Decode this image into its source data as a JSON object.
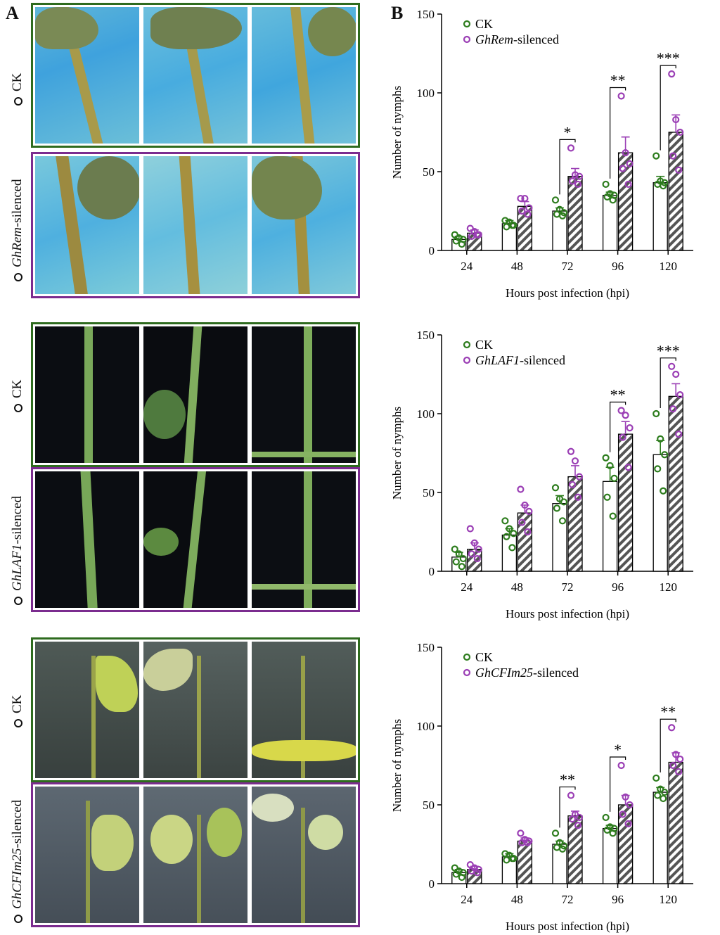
{
  "panel_a_label": "A",
  "panel_b_label": "B",
  "colors": {
    "ck": "#2e7d1e",
    "silenced": "#9b3fb5",
    "ck_border": "#2e6b1e",
    "si_border": "#7b2c8f"
  },
  "photo_groups": [
    {
      "ck_label": "CK",
      "silenced_gene": "GhRem",
      "silenced_suffix": "-silenced"
    },
    {
      "ck_label": "CK",
      "silenced_gene": "GhLAF1",
      "silenced_suffix": "-silenced"
    },
    {
      "ck_label": "CK",
      "silenced_gene": "GhCFIm25",
      "silenced_suffix": "-silenced"
    }
  ],
  "chart_data": [
    {
      "type": "bar",
      "xlabel": "Hours post infection (hpi)",
      "ylabel": "Number of nymphs",
      "ylim": [
        0,
        150
      ],
      "yticks": [
        0,
        50,
        100,
        150
      ],
      "categories": [
        "24",
        "48",
        "72",
        "96",
        "120"
      ],
      "legend": {
        "ck": "CK",
        "silenced_gene": "GhRem",
        "silenced_suffix": "-silenced"
      },
      "series": [
        {
          "name": "CK",
          "values": [
            7,
            17,
            25,
            35,
            43
          ],
          "errors": [
            2,
            2,
            2,
            2,
            4
          ],
          "points": [
            [
              10,
              8,
              7,
              6,
              4
            ],
            [
              19,
              18,
              16,
              15,
              16
            ],
            [
              32,
              26,
              24,
              23,
              22
            ],
            [
              42,
              36,
              35,
              34,
              32
            ],
            [
              60,
              44,
              43,
              42,
              41
            ]
          ]
        },
        {
          "name": "GhRem-silenced",
          "values": [
            11,
            28,
            47,
            62,
            75
          ],
          "errors": [
            2,
            3,
            5,
            10,
            11
          ],
          "points": [
            [
              14,
              12,
              10,
              9,
              10
            ],
            [
              33,
              33,
              27,
              25,
              23
            ],
            [
              65,
              48,
              47,
              44,
              42
            ],
            [
              98,
              62,
              55,
              52,
              42
            ],
            [
              112,
              83,
              75,
              60,
              51
            ]
          ]
        }
      ],
      "significance": [
        {
          "category": "72",
          "label": "*"
        },
        {
          "category": "96",
          "label": "**"
        },
        {
          "category": "120",
          "label": "***"
        }
      ]
    },
    {
      "type": "bar",
      "xlabel": "Hours post infection (hpi)",
      "ylabel": "Number of nymphs",
      "ylim": [
        0,
        150
      ],
      "yticks": [
        0,
        50,
        100,
        150
      ],
      "categories": [
        "24",
        "48",
        "72",
        "96",
        "120"
      ],
      "legend": {
        "ck": "CK",
        "silenced_gene": "GhLAF1",
        "silenced_suffix": "-silenced"
      },
      "series": [
        {
          "name": "CK",
          "values": [
            9,
            23,
            43,
            57,
            74
          ],
          "errors": [
            3,
            4,
            5,
            9,
            9
          ],
          "points": [
            [
              14,
              11,
              8,
              6,
              3
            ],
            [
              32,
              27,
              24,
              22,
              15
            ],
            [
              53,
              46,
              44,
              40,
              32
            ],
            [
              72,
              67,
              59,
              47,
              35
            ],
            [
              100,
              84,
              74,
              65,
              51
            ]
          ]
        },
        {
          "name": "GhLAF1-silenced",
          "values": [
            14,
            37,
            60,
            87,
            111
          ],
          "errors": [
            4,
            5,
            7,
            8,
            8
          ],
          "points": [
            [
              27,
              18,
              14,
              11,
              8
            ],
            [
              52,
              42,
              38,
              31,
              25
            ],
            [
              76,
              70,
              60,
              55,
              47
            ],
            [
              102,
              99,
              91,
              85,
              66
            ],
            [
              130,
              125,
              112,
              103,
              87
            ]
          ]
        }
      ],
      "significance": [
        {
          "category": "96",
          "label": "**"
        },
        {
          "category": "120",
          "label": "***"
        }
      ]
    },
    {
      "type": "bar",
      "xlabel": "Hours post infection (hpi)",
      "ylabel": "Number of nymphs",
      "ylim": [
        0,
        150
      ],
      "yticks": [
        0,
        50,
        100,
        150
      ],
      "categories": [
        "24",
        "48",
        "72",
        "96",
        "120"
      ],
      "legend": {
        "ck": "CK",
        "silenced_gene": "GhCFIm25",
        "silenced_suffix": "-silenced"
      },
      "series": [
        {
          "name": "CK",
          "values": [
            7,
            17,
            25,
            35,
            58
          ],
          "errors": [
            2,
            2,
            2,
            2,
            3
          ],
          "points": [
            [
              10,
              8,
              7,
              6,
              4
            ],
            [
              19,
              18,
              16,
              15,
              16
            ],
            [
              32,
              26,
              24,
              23,
              22
            ],
            [
              42,
              36,
              35,
              34,
              32
            ],
            [
              67,
              60,
              58,
              56,
              54
            ]
          ]
        },
        {
          "name": "GhCFIm25-silenced",
          "values": [
            9,
            27,
            43,
            50,
            77
          ],
          "errors": [
            2,
            2,
            3,
            6,
            6
          ],
          "points": [
            [
              12,
              10,
              9,
              8,
              7
            ],
            [
              32,
              28,
              27,
              26,
              26
            ],
            [
              56,
              44,
              42,
              41,
              37
            ],
            [
              75,
              55,
              50,
              44,
              38
            ],
            [
              99,
              82,
              79,
              75,
              71
            ]
          ]
        }
      ],
      "significance": [
        {
          "category": "72",
          "label": "**"
        },
        {
          "category": "96",
          "label": "*"
        },
        {
          "category": "120",
          "label": "**"
        }
      ]
    }
  ]
}
